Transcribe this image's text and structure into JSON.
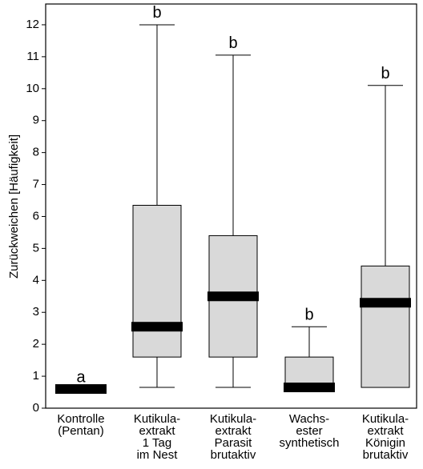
{
  "chart_data": {
    "type": "boxplot",
    "y_label": "Zurückweichen [Häufigkeit]",
    "categories": [
      [
        "Kontrolle",
        "(Pentan)"
      ],
      [
        "Kutikula-",
        "extrakt",
        "1 Tag",
        "im Nest"
      ],
      [
        "Kutikula-",
        "extrakt",
        "Parasit",
        "brutaktiv"
      ],
      [
        "Wachs-",
        "ester",
        "synthetisch"
      ],
      [
        "Kutikula-",
        "extrakt",
        "Königin",
        "brutaktiv"
      ]
    ],
    "series": [
      {
        "name": "min",
        "values": [
          0.6,
          0.65,
          0.65,
          0.6,
          0.65
        ]
      },
      {
        "name": "q1",
        "values": [
          0.6,
          1.6,
          1.6,
          0.6,
          0.65
        ]
      },
      {
        "name": "median",
        "values": [
          0.6,
          2.55,
          3.5,
          0.65,
          3.3
        ]
      },
      {
        "name": "q3",
        "values": [
          0.6,
          6.35,
          5.4,
          1.6,
          4.45
        ]
      },
      {
        "name": "max",
        "values": [
          0.6,
          12,
          11.05,
          2.55,
          10.1
        ]
      }
    ],
    "letters": [
      "a",
      "b",
      "b",
      "b",
      "b"
    ],
    "box_color": "#d9d9d9",
    "median_color": "#000000",
    "ylim": [
      0,
      12.65
    ],
    "yticks": [
      0,
      1,
      2,
      3,
      4,
      5,
      6,
      7,
      8,
      9,
      10,
      11,
      12
    ]
  }
}
